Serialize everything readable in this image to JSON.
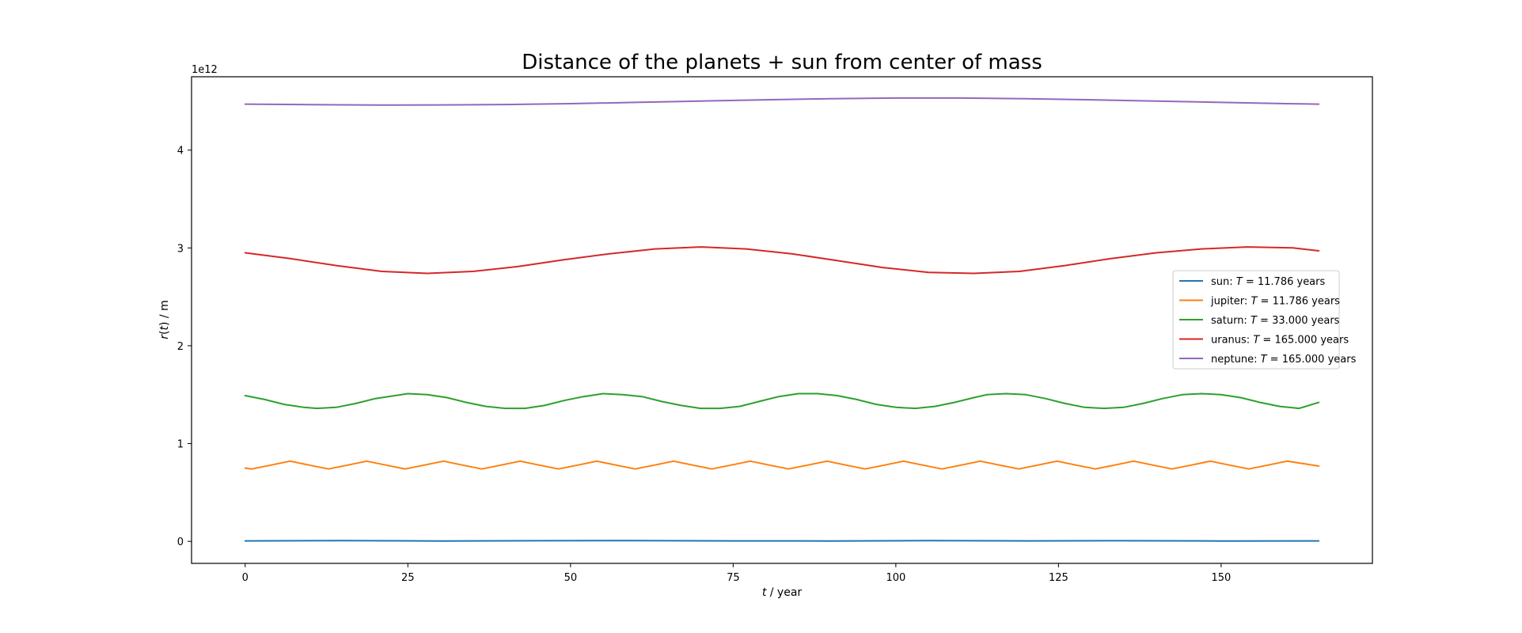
{
  "chart_data": {
    "type": "line",
    "title": "Distance of the planets + sun from center of mass",
    "xlabel": "t / year",
    "ylabel": "r(t) / m",
    "y_offset_label": "1e12",
    "xlim": [
      -8.25,
      173.25
    ],
    "ylim": [
      -0.225,
      4.75
    ],
    "x_ticks": [
      0,
      25,
      50,
      75,
      100,
      125,
      150
    ],
    "y_ticks": [
      0,
      1,
      2,
      3,
      4
    ],
    "legend_position": "center-right",
    "grid": false,
    "series": [
      {
        "name": "sun: T = 11.786 years",
        "label_prefix": "sun: ",
        "label_T": "T",
        "label_suffix": " = 11.786 years",
        "color": "#1f77b4",
        "x": [
          0,
          15,
          30,
          45,
          60,
          75,
          90,
          105,
          120,
          135,
          150,
          165
        ],
        "y": [
          0.005,
          0.007,
          0.004,
          0.006,
          0.008,
          0.005,
          0.004,
          0.007,
          0.005,
          0.006,
          0.004,
          0.005
        ]
      },
      {
        "name": "jupiter: T = 11.786 years",
        "label_prefix": "jupiter: ",
        "label_T": "T",
        "label_suffix": " = 11.786 years",
        "color": "#ff7f0e",
        "x": [
          0,
          1,
          3.95,
          6.9,
          9.84,
          12.79,
          15.74,
          18.68,
          21.63,
          24.58,
          27.52,
          30.47,
          33.42,
          36.36,
          39.31,
          42.26,
          45.2,
          48.15,
          51.1,
          54.05,
          56.99,
          59.94,
          62.89,
          65.83,
          68.78,
          71.73,
          74.67,
          77.62,
          80.57,
          83.51,
          86.46,
          89.41,
          92.35,
          95.3,
          98.25,
          101.19,
          104.14,
          107.09,
          110.03,
          112.98,
          115.93,
          118.88,
          121.82,
          124.77,
          127.72,
          130.66,
          133.61,
          136.56,
          139.5,
          142.45,
          145.4,
          148.34,
          151.29,
          154.24,
          157.18,
          160.13,
          163.08,
          165
        ],
        "y": [
          0.75,
          0.74,
          0.78,
          0.82,
          0.78,
          0.74,
          0.78,
          0.82,
          0.78,
          0.74,
          0.78,
          0.82,
          0.78,
          0.74,
          0.78,
          0.82,
          0.78,
          0.74,
          0.78,
          0.82,
          0.78,
          0.74,
          0.78,
          0.82,
          0.78,
          0.74,
          0.78,
          0.82,
          0.78,
          0.74,
          0.78,
          0.82,
          0.78,
          0.74,
          0.78,
          0.82,
          0.78,
          0.74,
          0.78,
          0.82,
          0.78,
          0.74,
          0.78,
          0.82,
          0.78,
          0.74,
          0.78,
          0.82,
          0.78,
          0.74,
          0.78,
          0.82,
          0.78,
          0.74,
          0.78,
          0.82,
          0.79,
          0.77
        ]
      },
      {
        "name": "saturn: T = 33.000 years",
        "label_prefix": "saturn: ",
        "label_T": "T",
        "label_suffix": " = 33.000 years",
        "color": "#2ca02c",
        "x": [
          0,
          3,
          6,
          9,
          11,
          14,
          17,
          20,
          23,
          25,
          28,
          31,
          34,
          37,
          40,
          43,
          46,
          49,
          52,
          55,
          58,
          61,
          64,
          67,
          70,
          73,
          76,
          79,
          82,
          85,
          88,
          91,
          94,
          97,
          100,
          103,
          106,
          109,
          112,
          114,
          117,
          120,
          123,
          126,
          129,
          132,
          135,
          138,
          141,
          144,
          147,
          150,
          153,
          156,
          159,
          162,
          165
        ],
        "y": [
          1.49,
          1.45,
          1.4,
          1.37,
          1.36,
          1.37,
          1.41,
          1.46,
          1.49,
          1.51,
          1.5,
          1.47,
          1.42,
          1.38,
          1.36,
          1.36,
          1.39,
          1.44,
          1.48,
          1.51,
          1.5,
          1.48,
          1.43,
          1.39,
          1.36,
          1.36,
          1.38,
          1.43,
          1.48,
          1.51,
          1.51,
          1.49,
          1.45,
          1.4,
          1.37,
          1.36,
          1.38,
          1.42,
          1.47,
          1.5,
          1.51,
          1.5,
          1.46,
          1.41,
          1.37,
          1.36,
          1.37,
          1.41,
          1.46,
          1.5,
          1.51,
          1.5,
          1.47,
          1.42,
          1.38,
          1.36,
          1.42
        ]
      },
      {
        "name": "uranus: T = 165.000 years",
        "label_prefix": "uranus: ",
        "label_T": "T",
        "label_suffix": " = 165.000 years",
        "color": "#d62728",
        "x": [
          0,
          7,
          14,
          21,
          28,
          35,
          42,
          49,
          56,
          63,
          70,
          77,
          84,
          91,
          98,
          105,
          112,
          119,
          126,
          133,
          140,
          147,
          154,
          161,
          165
        ],
        "y": [
          2.95,
          2.89,
          2.82,
          2.76,
          2.74,
          2.76,
          2.81,
          2.88,
          2.94,
          2.99,
          3.01,
          2.99,
          2.94,
          2.87,
          2.8,
          2.75,
          2.74,
          2.76,
          2.82,
          2.89,
          2.95,
          2.99,
          3.01,
          3.0,
          2.97
        ]
      },
      {
        "name": "neptune: T = 165.000 years",
        "label_prefix": "neptune: ",
        "label_T": "T",
        "label_suffix": " = 165.000 years",
        "color": "#9467bd",
        "x": [
          0,
          10,
          20,
          30,
          40,
          50,
          60,
          70,
          80,
          90,
          100,
          110,
          120,
          130,
          140,
          150,
          160,
          165
        ],
        "y": [
          4.47,
          4.465,
          4.46,
          4.462,
          4.466,
          4.475,
          4.488,
          4.502,
          4.515,
          4.526,
          4.532,
          4.532,
          4.526,
          4.515,
          4.502,
          4.488,
          4.475,
          4.47
        ]
      }
    ]
  }
}
